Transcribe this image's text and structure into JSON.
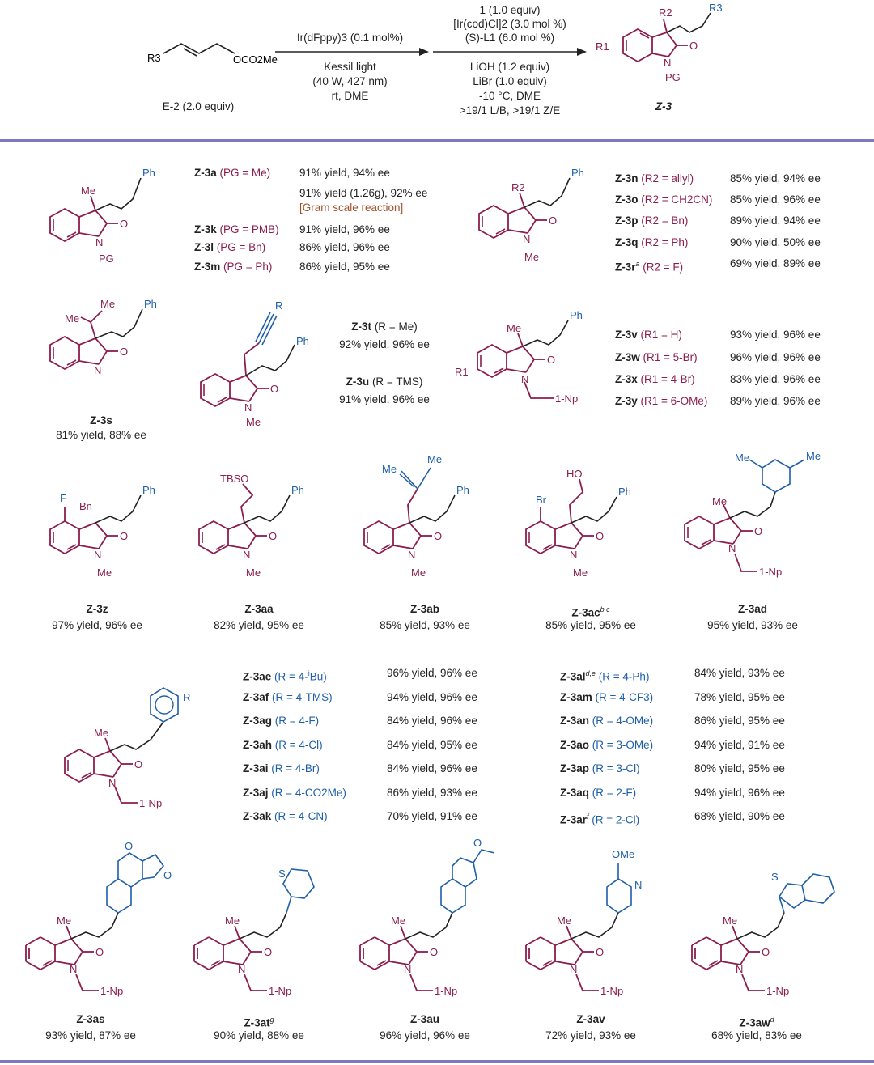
{
  "header": {
    "reactant_label": "E-2 (2.0 equiv)",
    "reactant_group": "OCO2Me",
    "reactant_r": "R3",
    "step1_above": "Ir(dFppy)3 (0.1 mol%)",
    "step1_below": [
      "Kessil light",
      "(40 W, 427 nm)",
      "rt, DME"
    ],
    "step2_above": [
      "1 (1.0 equiv)",
      "[Ir(cod)Cl]2 (3.0 mol %)",
      "(S)-L1 (6.0 mol %)"
    ],
    "step2_below": [
      "LiOH (1.2 equiv)",
      "LiBr (1.0 equiv)",
      "-10 °C, DME",
      ">19/1 L/B, >19/1 Z/E"
    ],
    "product_label": "Z-3",
    "product_atoms": {
      "r1": "R1",
      "r2": "R2",
      "r3": "R3",
      "n": "N",
      "o": "O",
      "pg": "PG"
    }
  },
  "row1_left": {
    "atoms": {
      "me": "Me",
      "ph": "Ph",
      "n": "N",
      "o": "O",
      "pg": "PG"
    },
    "entries": [
      {
        "cmpd": "Z-3a",
        "cond": "(PG = Me)",
        "result": "91% yield, 94% ee"
      },
      {
        "cmpd": "",
        "cond": "",
        "result": "91% yield (1.26g), 92% ee",
        "note": "[Gram scale reaction]"
      },
      {
        "cmpd": "Z-3k",
        "cond": "(PG = PMB)",
        "result": "91% yield, 96% ee"
      },
      {
        "cmpd": "Z-3l",
        "cond": "(PG = Bn)",
        "result": "86% yield, 96% ee"
      },
      {
        "cmpd": "Z-3m",
        "cond": "(PG = Ph)",
        "result": "86% yield, 95% ee"
      }
    ]
  },
  "row1_right": {
    "atoms": {
      "r2": "R2",
      "ph": "Ph",
      "n": "N",
      "o": "O",
      "me": "Me"
    },
    "entries": [
      {
        "cmpd": "Z-3n",
        "cond": "(R2 = allyl)",
        "result": "85% yield, 94% ee"
      },
      {
        "cmpd": "Z-3o",
        "cond": "(R2 = CH2CN)",
        "result": "85% yield, 96% ee"
      },
      {
        "cmpd": "Z-3p",
        "cond": "(R2 = Bn)",
        "result": "89% yield, 94% ee"
      },
      {
        "cmpd": "Z-3q",
        "cond": "(R2 = Ph)",
        "result": "90% yield, 50% ee"
      },
      {
        "cmpd": "Z-3r",
        "sup": "a",
        "cond": "(R2 = F)",
        "result": "69% yield, 89% ee"
      }
    ]
  },
  "row2": {
    "s": {
      "label": "Z-3s",
      "result": "81% yield, 88% ee",
      "atoms": {
        "me1": "Me",
        "me2": "Me",
        "ph": "Ph",
        "n": "N",
        "o": "O"
      }
    },
    "tu": {
      "atoms": {
        "r": "R",
        "ph": "Ph",
        "n": "N",
        "o": "O",
        "me": "Me"
      },
      "entries": [
        {
          "cmpd": "Z-3t",
          "cond": "(R = Me)",
          "result": "92% yield, 96% ee"
        },
        {
          "cmpd": "Z-3u",
          "cond": "(R = TMS)",
          "result": "91% yield, 96% ee"
        }
      ]
    },
    "vy": {
      "atoms": {
        "r1": "R1",
        "me": "Me",
        "ph": "Ph",
        "n": "N",
        "o": "O",
        "np": "1-Np"
      },
      "entries": [
        {
          "cmpd": "Z-3v",
          "cond": "(R1 = H)",
          "result": "93% yield, 96% ee"
        },
        {
          "cmpd": "Z-3w",
          "cond": "(R1 = 5-Br)",
          "result": "96% yield, 96% ee"
        },
        {
          "cmpd": "Z-3x",
          "cond": "(R1 = 4-Br)",
          "result": "83% yield, 96% ee"
        },
        {
          "cmpd": "Z-3y",
          "cond": "(R1 = 6-OMe)",
          "result": "89% yield, 96% ee"
        }
      ]
    }
  },
  "row3": [
    {
      "label": "Z-3z",
      "sup": "",
      "result": "97% yield, 96% ee",
      "atoms": {
        "a": "F",
        "b": "Bn",
        "ph": "Ph",
        "n": "N",
        "o": "O",
        "me": "Me"
      }
    },
    {
      "label": "Z-3aa",
      "sup": "",
      "result": "82% yield, 95% ee",
      "atoms": {
        "a": "TBSO",
        "ph": "Ph",
        "n": "N",
        "o": "O",
        "me": "Me"
      }
    },
    {
      "label": "Z-3ab",
      "sup": "",
      "result": "85% yield, 93% ee",
      "atoms": {
        "a": "Me",
        "b": "Me",
        "ph": "Ph",
        "n": "N",
        "o": "O",
        "me": "Me"
      }
    },
    {
      "label": "Z-3ac",
      "sup": "b,c",
      "result": "85% yield, 95% ee",
      "atoms": {
        "a": "HO",
        "b": "Br",
        "ph": "Ph",
        "n": "N",
        "o": "O",
        "me": "Me"
      }
    },
    {
      "label": "Z-3ad",
      "sup": "",
      "result": "95% yield, 93% ee",
      "atoms": {
        "a": "Me",
        "b": "Me",
        "c": "Me",
        "n": "N",
        "o": "O",
        "np": "1-Np"
      }
    }
  ],
  "row4": {
    "atoms": {
      "r": "R",
      "me": "Me",
      "n": "N",
      "o": "O",
      "np": "1-Np"
    },
    "left": [
      {
        "cmpd": "Z-3ae",
        "sup": "",
        "cond": "(R = 4-",
        "cond_sup": "i",
        "cond_tail": "Bu)",
        "result": "96% yield, 96% ee"
      },
      {
        "cmpd": "Z-3af",
        "sup": "",
        "cond": "(R = 4-TMS)",
        "result": "94% yield, 96% ee"
      },
      {
        "cmpd": "Z-3ag",
        "sup": "",
        "cond": "(R = 4-F)",
        "result": "84% yield, 96% ee"
      },
      {
        "cmpd": "Z-3ah",
        "sup": "",
        "cond": "(R = 4-Cl)",
        "result": "84% yield, 95% ee"
      },
      {
        "cmpd": "Z-3ai",
        "sup": "",
        "cond": "(R = 4-Br)",
        "result": "84% yield, 96% ee"
      },
      {
        "cmpd": "Z-3aj",
        "sup": "",
        "cond": "(R = 4-CO2Me)",
        "result": "86% yield, 93% ee"
      },
      {
        "cmpd": "Z-3ak",
        "sup": "",
        "cond": "(R = 4-CN)",
        "result": "70% yield, 91% ee"
      }
    ],
    "right": [
      {
        "cmpd": "Z-3al",
        "sup": "d,e",
        "cond": "(R = 4-Ph)",
        "result": "84% yield, 93% ee"
      },
      {
        "cmpd": "Z-3am",
        "sup": "",
        "cond": "(R = 4-CF3)",
        "result": "78% yield, 95% ee"
      },
      {
        "cmpd": "Z-3an",
        "sup": "",
        "cond": "(R = 4-OMe)",
        "result": "86% yield, 95% ee"
      },
      {
        "cmpd": "Z-3ao",
        "sup": "",
        "cond": "(R = 3-OMe)",
        "result": "94% yield, 91% ee"
      },
      {
        "cmpd": "Z-3ap",
        "sup": "",
        "cond": "(R = 3-Cl)",
        "result": "80% yield, 95% ee"
      },
      {
        "cmpd": "Z-3aq",
        "sup": "",
        "cond": "(R = 2-F)",
        "result": "94% yield, 96% ee"
      },
      {
        "cmpd": "Z-3ar",
        "sup": "f",
        "cond": "(R = 2-Cl)",
        "result": "68% yield, 90% ee"
      }
    ]
  },
  "row5": [
    {
      "label": "Z-3as",
      "sup": "",
      "result": "93% yield, 87% ee",
      "atoms": {
        "o1": "O",
        "o2": "O"
      }
    },
    {
      "label": "Z-3at",
      "sup": "g",
      "result": "90% yield, 88% ee",
      "atoms": {
        "s": "S"
      }
    },
    {
      "label": "Z-3au",
      "sup": "",
      "result": "96% yield, 96% ee",
      "atoms": {
        "o1": "O"
      }
    },
    {
      "label": "Z-3av",
      "sup": "",
      "result": "72% yield, 93% ee",
      "atoms": {
        "ome": "OMe",
        "n2": "N"
      }
    },
    {
      "label": "Z-3aw",
      "sup": "d",
      "result": "68% yield, 83% ee",
      "atoms": {
        "s": "S"
      }
    }
  ],
  "row5_common": {
    "me": "Me",
    "n": "N",
    "o": "O",
    "np": "1-Np"
  },
  "colors": {
    "scaffold": "#8b1e4e",
    "substituent": "#1f5fa8",
    "rule": "#7e78c0",
    "note": "#a0522d"
  }
}
